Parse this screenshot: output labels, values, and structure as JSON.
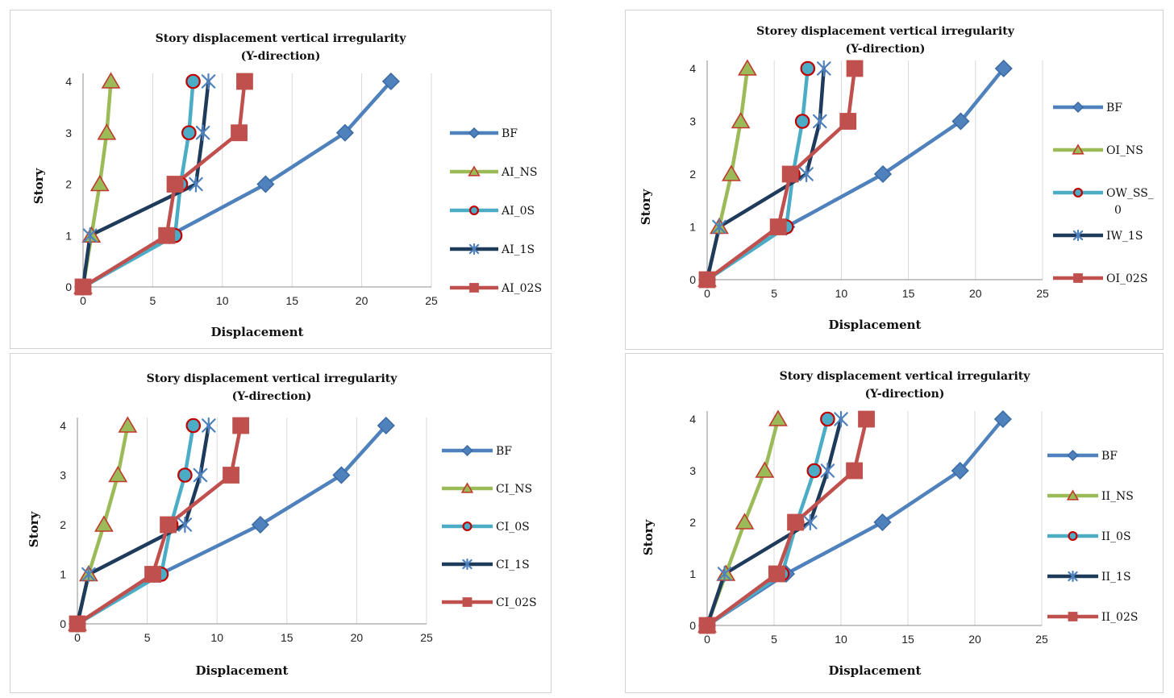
{
  "colors": {
    "grid": "#d9d9d9",
    "axis": "#8c8c8c",
    "series": [
      "#4f81bd",
      "#9bbb59",
      "#4bacc6",
      "#1f3b5c",
      "#c0504d"
    ],
    "marker_fill": [
      "#4f81bd",
      "#9bbb59",
      "#4bacc6",
      "#1f3b5c",
      "#c0504d"
    ],
    "marker_stroke": [
      "#3a6aa4",
      "#c0392b",
      "#c00000",
      "#4f81bd",
      "#c0504d"
    ]
  },
  "chart_data": [
    {
      "type": "line",
      "title": "Story displacement vertical irregularity",
      "subtitle": "(Y-direction)",
      "xlabel": "Displacement",
      "ylabel": "Story",
      "xlim": [
        0,
        25
      ],
      "ylim": [
        0,
        4
      ],
      "x_ticks": [
        0,
        5,
        10,
        15,
        20,
        25
      ],
      "y_ticks": [
        0,
        1,
        2,
        3,
        4
      ],
      "grid": "vertical",
      "legend": "right",
      "series": [
        {
          "name": "BF",
          "marker": "diamond",
          "x": [
            0,
            6.2,
            13.1,
            18.8,
            22.1
          ],
          "y": [
            0,
            1,
            2,
            3,
            4
          ]
        },
        {
          "name": "AI_NS",
          "marker": "triangle",
          "x": [
            0,
            0.6,
            1.2,
            1.7,
            2.0
          ],
          "y": [
            0,
            1,
            2,
            3,
            4
          ]
        },
        {
          "name": "AI_0S",
          "marker": "circle",
          "x": [
            0,
            6.6,
            7.0,
            7.6,
            7.9
          ],
          "y": [
            0,
            1,
            2,
            3,
            4
          ]
        },
        {
          "name": "AI_1S",
          "marker": "star",
          "x": [
            0,
            0.5,
            8.1,
            8.6,
            9.0
          ],
          "y": [
            0,
            1,
            2,
            3,
            4
          ]
        },
        {
          "name": "AI_02S",
          "marker": "square",
          "x": [
            0,
            6.0,
            6.6,
            11.2,
            11.6
          ],
          "y": [
            0,
            1,
            2,
            3,
            4
          ]
        }
      ]
    },
    {
      "type": "line",
      "title": "Storey displacement vertical irregularity",
      "subtitle": "(Y-direction)",
      "xlabel": "Displacement",
      "ylabel": "Story",
      "xlim": [
        0,
        25
      ],
      "ylim": [
        0,
        4
      ],
      "x_ticks": [
        0,
        5,
        10,
        15,
        20,
        25
      ],
      "y_ticks": [
        0,
        1,
        2,
        3,
        4
      ],
      "grid": "vertical",
      "legend": "right",
      "series": [
        {
          "name": "BF",
          "marker": "diamond",
          "x": [
            0,
            5.9,
            13.1,
            18.9,
            22.1
          ],
          "y": [
            0,
            1,
            2,
            3,
            4
          ]
        },
        {
          "name": "OI_NS",
          "marker": "triangle",
          "x": [
            0,
            0.9,
            1.8,
            2.5,
            3.0
          ],
          "y": [
            0,
            1,
            2,
            3,
            4
          ]
        },
        {
          "name": "OW_SS_0",
          "marker": "circle",
          "x": [
            0,
            5.9,
            6.4,
            7.1,
            7.5
          ],
          "y": [
            0,
            1,
            2,
            3,
            4
          ]
        },
        {
          "name": "IW_1S",
          "marker": "star",
          "x": [
            0,
            0.9,
            7.4,
            8.4,
            8.7
          ],
          "y": [
            0,
            1,
            2,
            3,
            4
          ]
        },
        {
          "name": "OI_02S",
          "marker": "square",
          "x": [
            0,
            5.3,
            6.2,
            10.5,
            11.0
          ],
          "y": [
            0,
            1,
            2,
            3,
            4
          ]
        }
      ]
    },
    {
      "type": "line",
      "title": "Story displacement vertical irregularity",
      "subtitle": "(Y-direction)",
      "xlabel": "Displacement",
      "ylabel": "Story",
      "xlim": [
        0,
        25
      ],
      "ylim": [
        0,
        4
      ],
      "x_ticks": [
        0,
        5,
        10,
        15,
        20,
        25
      ],
      "y_ticks": [
        0,
        1,
        2,
        3,
        4
      ],
      "grid": "vertical",
      "legend": "right",
      "series": [
        {
          "name": "BF",
          "marker": "diamond",
          "x": [
            0,
            5.9,
            13.1,
            18.9,
            22.1
          ],
          "y": [
            0,
            1,
            2,
            3,
            4
          ]
        },
        {
          "name": "CI_NS",
          "marker": "triangle",
          "x": [
            0,
            0.8,
            1.9,
            2.9,
            3.6
          ],
          "y": [
            0,
            1,
            2,
            3,
            4
          ]
        },
        {
          "name": "CI_0S",
          "marker": "circle",
          "x": [
            0,
            6.0,
            6.7,
            7.7,
            8.3
          ],
          "y": [
            0,
            1,
            2,
            3,
            4
          ]
        },
        {
          "name": "CI_1S",
          "marker": "star",
          "x": [
            0,
            0.8,
            7.7,
            8.8,
            9.4
          ],
          "y": [
            0,
            1,
            2,
            3,
            4
          ]
        },
        {
          "name": "CI_02S",
          "marker": "square",
          "x": [
            0,
            5.4,
            6.5,
            11.0,
            11.7
          ],
          "y": [
            0,
            1,
            2,
            3,
            4
          ]
        }
      ]
    },
    {
      "type": "line",
      "title": "Story displacement vertical irregularity",
      "subtitle": "(Y-direction)",
      "xlabel": "Displacement",
      "ylabel": "Story",
      "xlim": [
        0,
        25
      ],
      "ylim": [
        0,
        4
      ],
      "x_ticks": [
        0,
        5,
        10,
        15,
        20,
        25
      ],
      "y_ticks": [
        0,
        1,
        2,
        3,
        4
      ],
      "grid": "vertical",
      "legend": "right",
      "series": [
        {
          "name": "BF",
          "marker": "diamond",
          "x": [
            0,
            5.9,
            13.1,
            18.9,
            22.1
          ],
          "y": [
            0,
            1,
            2,
            3,
            4
          ]
        },
        {
          "name": "II_NS",
          "marker": "triangle",
          "x": [
            0,
            1.4,
            2.8,
            4.3,
            5.3
          ],
          "y": [
            0,
            1,
            2,
            3,
            4
          ]
        },
        {
          "name": "II_0S",
          "marker": "circle",
          "x": [
            0,
            5.6,
            6.7,
            8.0,
            9.0
          ],
          "y": [
            0,
            1,
            2,
            3,
            4
          ]
        },
        {
          "name": "II_1S",
          "marker": "star",
          "x": [
            0,
            1.3,
            7.7,
            9.0,
            10.0
          ],
          "y": [
            0,
            1,
            2,
            3,
            4
          ]
        },
        {
          "name": "II_02S",
          "marker": "square",
          "x": [
            0,
            5.2,
            6.6,
            11.0,
            11.9
          ],
          "y": [
            0,
            1,
            2,
            3,
            4
          ]
        }
      ]
    }
  ]
}
